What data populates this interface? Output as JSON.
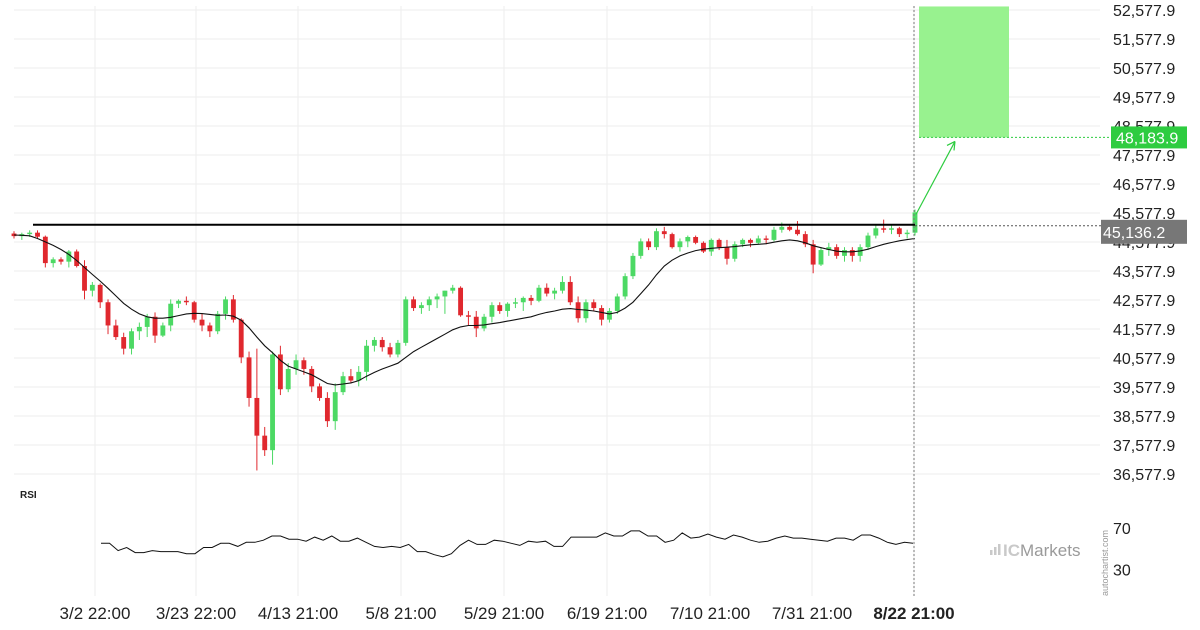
{
  "chart_data": {
    "type": "candlestick",
    "y_ticks": [
      "52,577.9",
      "51,577.9",
      "50,577.9",
      "49,577.9",
      "48,577.9",
      "47,577.9",
      "46,577.9",
      "45,577.9",
      "44,577.9",
      "43,577.9",
      "42,577.9",
      "41,577.9",
      "40,577.9",
      "39,577.9",
      "38,577.9",
      "37,577.9",
      "36,577.9"
    ],
    "y_tick_values": [
      52577.9,
      51577.9,
      50577.9,
      49577.9,
      48577.9,
      47577.9,
      46577.9,
      45577.9,
      44577.9,
      43577.9,
      42577.9,
      41577.9,
      40577.9,
      39577.9,
      38577.9,
      37577.9,
      36577.9
    ],
    "x_ticks": [
      "3/2 22:00",
      "3/23 22:00",
      "4/13 21:00",
      "5/8 21:00",
      "5/29 21:00",
      "6/19 21:00",
      "7/10 21:00",
      "7/31 21:00",
      "8/22 21:00"
    ],
    "x_tick_bold_index": 8,
    "ylim": [
      35900,
      53050
    ],
    "resistance_level": 45136.2,
    "current_price_label": "45,136.2",
    "target_price": 48183.9,
    "target_price_label": "48,183.9",
    "target_zone": [
      48183.9,
      52700
    ],
    "candles": [
      [
        44870,
        44950,
        44700,
        44780
      ],
      [
        44780,
        44900,
        44650,
        44850
      ],
      [
        44850,
        44980,
        44750,
        44900
      ],
      [
        44900,
        44980,
        44700,
        44760
      ],
      [
        44760,
        44800,
        43700,
        43850
      ],
      [
        43850,
        44050,
        43700,
        43980
      ],
      [
        43980,
        44050,
        43800,
        43900
      ],
      [
        43900,
        44300,
        43700,
        44250
      ],
      [
        44250,
        44320,
        43700,
        43750
      ],
      [
        43750,
        43950,
        42600,
        42900
      ],
      [
        42900,
        43200,
        42700,
        43100
      ],
      [
        43100,
        43150,
        42300,
        42500
      ],
      [
        42500,
        42600,
        41400,
        41700
      ],
      [
        41700,
        41900,
        41200,
        41300
      ],
      [
        41300,
        41450,
        40700,
        40900
      ],
      [
        40900,
        41600,
        40700,
        41500
      ],
      [
        41500,
        41800,
        41200,
        41650
      ],
      [
        41650,
        42100,
        41300,
        42000
      ],
      [
        42000,
        42150,
        41100,
        41350
      ],
      [
        41350,
        41800,
        41300,
        41700
      ],
      [
        41700,
        42600,
        41500,
        42450
      ],
      [
        42450,
        42600,
        42300,
        42550
      ],
      [
        42550,
        42700,
        42400,
        42500
      ],
      [
        42500,
        42550,
        41800,
        41900
      ],
      [
        41900,
        42100,
        41500,
        41700
      ],
      [
        41700,
        41800,
        41300,
        41500
      ],
      [
        41500,
        42200,
        41400,
        42100
      ],
      [
        42100,
        42700,
        41900,
        42600
      ],
      [
        42600,
        42750,
        41800,
        41900
      ],
      [
        41900,
        41950,
        40400,
        40600
      ],
      [
        40600,
        40800,
        38900,
        39200
      ],
      [
        39200,
        40900,
        36700,
        37900
      ],
      [
        37900,
        38200,
        37200,
        37400
      ],
      [
        37400,
        40800,
        36900,
        40700
      ],
      [
        40700,
        41000,
        39300,
        39500
      ],
      [
        39500,
        40400,
        39400,
        40200
      ],
      [
        40200,
        40700,
        40000,
        40500
      ],
      [
        40500,
        40600,
        40000,
        40200
      ],
      [
        40200,
        40300,
        39400,
        39600
      ],
      [
        39600,
        39700,
        39100,
        39200
      ],
      [
        39200,
        39400,
        38200,
        38400
      ],
      [
        38400,
        39700,
        38100,
        39400
      ],
      [
        39400,
        40100,
        39300,
        39950
      ],
      [
        39950,
        40200,
        39700,
        39800
      ],
      [
        39800,
        40300,
        39600,
        40100
      ],
      [
        40100,
        41200,
        39800,
        41000
      ],
      [
        41000,
        41300,
        40800,
        41200
      ],
      [
        41200,
        41300,
        40800,
        40950
      ],
      [
        40950,
        41100,
        40600,
        40700
      ],
      [
        40700,
        41200,
        40600,
        41100
      ],
      [
        41100,
        42700,
        41000,
        42600
      ],
      [
        42600,
        42700,
        42200,
        42300
      ],
      [
        42300,
        42500,
        42100,
        42400
      ],
      [
        42400,
        42700,
        42200,
        42600
      ],
      [
        42600,
        42800,
        42300,
        42700
      ],
      [
        42700,
        42900,
        42100,
        42900
      ],
      [
        42900,
        43100,
        42800,
        43000
      ],
      [
        43000,
        43050,
        42000,
        42050
      ],
      [
        42050,
        42200,
        41700,
        42000
      ],
      [
        42000,
        42200,
        41300,
        41600
      ],
      [
        41600,
        42100,
        41500,
        42000
      ],
      [
        42000,
        42500,
        41800,
        42400
      ],
      [
        42400,
        42500,
        42100,
        42200
      ],
      [
        42200,
        42500,
        42000,
        42450
      ],
      [
        42450,
        42650,
        42300,
        42500
      ],
      [
        42500,
        42700,
        42200,
        42650
      ],
      [
        42650,
        42750,
        42400,
        42550
      ],
      [
        42550,
        43100,
        42500,
        43000
      ],
      [
        43000,
        43150,
        42700,
        42800
      ],
      [
        42800,
        43000,
        42600,
        42900
      ],
      [
        42900,
        43400,
        42800,
        43200
      ],
      [
        43200,
        43400,
        42400,
        42500
      ],
      [
        42500,
        42700,
        41800,
        41950
      ],
      [
        41950,
        42600,
        41800,
        42500
      ],
      [
        42500,
        42600,
        42200,
        42300
      ],
      [
        42300,
        42400,
        41700,
        41900
      ],
      [
        41900,
        42300,
        41800,
        42200
      ],
      [
        42200,
        42800,
        42100,
        42700
      ],
      [
        42700,
        43500,
        42600,
        43400
      ],
      [
        43400,
        44200,
        43300,
        44100
      ],
      [
        44100,
        44700,
        44000,
        44600
      ],
      [
        44600,
        44700,
        44300,
        44400
      ],
      [
        44400,
        45050,
        44300,
        44950
      ],
      [
        44950,
        45100,
        44700,
        44850
      ],
      [
        44850,
        44900,
        44350,
        44400
      ],
      [
        44400,
        44700,
        44250,
        44600
      ],
      [
        44600,
        44800,
        44400,
        44750
      ],
      [
        44750,
        44800,
        44500,
        44550
      ],
      [
        44550,
        44600,
        44200,
        44250
      ],
      [
        44250,
        44700,
        44100,
        44650
      ],
      [
        44650,
        44700,
        44300,
        44400
      ],
      [
        44400,
        44650,
        43800,
        44000
      ],
      [
        44000,
        44600,
        43900,
        44500
      ],
      [
        44500,
        44700,
        44400,
        44650
      ],
      [
        44650,
        44700,
        44400,
        44550
      ],
      [
        44550,
        44800,
        44500,
        44700
      ],
      [
        44700,
        44800,
        44500,
        44650
      ],
      [
        44650,
        45100,
        44600,
        45000
      ],
      [
        45000,
        45250,
        44900,
        45100
      ],
      [
        45100,
        45200,
        44950,
        45000
      ],
      [
        45000,
        45300,
        44800,
        44850
      ],
      [
        44850,
        44950,
        44400,
        44500
      ],
      [
        44500,
        44650,
        43500,
        43800
      ],
      [
        43800,
        44400,
        43750,
        44300
      ],
      [
        44300,
        44550,
        44100,
        44400
      ],
      [
        44400,
        44500,
        44000,
        44100
      ],
      [
        44100,
        44400,
        43900,
        44300
      ],
      [
        44300,
        44400,
        43900,
        44100
      ],
      [
        44100,
        44500,
        43900,
        44400
      ],
      [
        44400,
        44900,
        44300,
        44800
      ],
      [
        44800,
        45200,
        44700,
        45050
      ],
      [
        45050,
        45350,
        44900,
        45000
      ],
      [
        45000,
        45150,
        44850,
        45050
      ],
      [
        45050,
        45100,
        44750,
        44850
      ],
      [
        44850,
        45000,
        44700,
        44900
      ],
      [
        44900,
        45700,
        44800,
        45600
      ]
    ],
    "moving_average": [
      44820,
      44810,
      44790,
      44700,
      44580,
      44460,
      44320,
      44150,
      43940,
      43700,
      43460,
      43230,
      42980,
      42720,
      42460,
      42260,
      42100,
      42000,
      41950,
      41950,
      41980,
      42040,
      42100,
      42120,
      42110,
      42080,
      42050,
      42060,
      42020,
      41880,
      41620,
      41300,
      41000,
      40760,
      40500,
      40300,
      40200,
      40100,
      40000,
      39850,
      39700,
      39650,
      39680,
      39720,
      39800,
      39950,
      40080,
      40200,
      40300,
      40400,
      40600,
      40800,
      40950,
      41100,
      41250,
      41400,
      41550,
      41650,
      41700,
      41700,
      41720,
      41760,
      41800,
      41850,
      41900,
      41950,
      42000,
      42080,
      42150,
      42200,
      42260,
      42280,
      42250,
      42230,
      42200,
      42150,
      42100,
      42150,
      42300,
      42500,
      42800,
      43100,
      43450,
      43750,
      43950,
      44100,
      44200,
      44280,
      44330,
      44360,
      44380,
      44400,
      44420,
      44450,
      44480,
      44500,
      44520,
      44570,
      44620,
      44650,
      44620,
      44550,
      44450,
      44380,
      44320,
      44260,
      44240,
      44240,
      44270,
      44330,
      44420,
      44500,
      44560,
      44620,
      44660,
      44700
    ],
    "rsi": {
      "label": "RSI",
      "ticks": [
        "70",
        "30"
      ],
      "tick_values": [
        70,
        30
      ],
      "ylim": [
        10,
        90
      ],
      "values": [
        55,
        55,
        48,
        51,
        46,
        46,
        48,
        47,
        47,
        47,
        45,
        45,
        51,
        51,
        55,
        55,
        52,
        56,
        56,
        58,
        62,
        62,
        59,
        59,
        57,
        61,
        58,
        62,
        57,
        57,
        60,
        56,
        52,
        51,
        52,
        51,
        54,
        47,
        47,
        44,
        42,
        45,
        53,
        58,
        54,
        54,
        58,
        57,
        55,
        53,
        57,
        56,
        57,
        52,
        52,
        61,
        61,
        61,
        61,
        65,
        62,
        62,
        67,
        67,
        62,
        62,
        56,
        58,
        65,
        60,
        61,
        64,
        61,
        59,
        63,
        61,
        58,
        56,
        57,
        60,
        62,
        60,
        60,
        59,
        58,
        57,
        60,
        60,
        58,
        63,
        63,
        60,
        56,
        54,
        56,
        55
      ]
    }
  },
  "branding": {
    "logo_ic": "IC",
    "logo_markets": "Markets",
    "watermark": "autochartist.com"
  },
  "colors": {
    "bull": "#4cd964",
    "bear": "#e0282e",
    "target_zone": "#98f28f",
    "badge_current": "#777777",
    "badge_target": "#2ecc40",
    "resistance": "#000000"
  }
}
